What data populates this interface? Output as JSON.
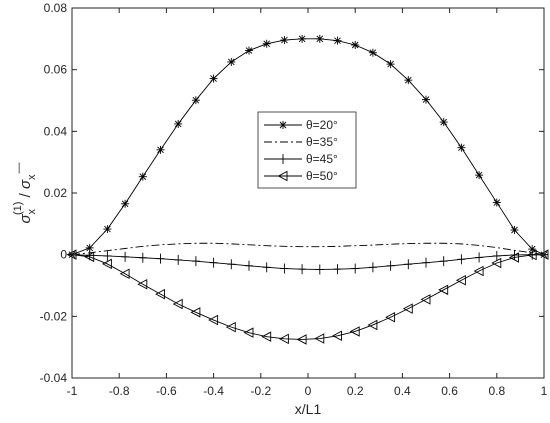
{
  "chart_data": {
    "type": "line",
    "xlabel": "x/L1",
    "ylabel": {
      "sigma": "σ",
      "sub": "x",
      "sup": "(1)",
      "slash": " / ",
      "sigma2": "σ",
      "sub2": "x",
      "over": "—"
    },
    "xlim": [
      -1,
      1
    ],
    "ylim": [
      -0.04,
      0.08
    ],
    "x_ticks": [
      -1,
      -0.8,
      -0.6,
      -0.4,
      -0.2,
      0,
      0.2,
      0.4,
      0.6,
      0.8,
      1
    ],
    "x_tick_labels": [
      "-1",
      "-0.8",
      "-0.6",
      "-0.4",
      "-0.2",
      "0",
      "0.2",
      "0.4",
      "0.6",
      "0.8",
      "1"
    ],
    "y_ticks": [
      -0.04,
      -0.02,
      0,
      0.02,
      0.04,
      0.06,
      0.08
    ],
    "y_tick_labels": [
      "-0.04",
      "-0.02",
      "0",
      "0.02",
      "0.04",
      "0.06",
      "0.08"
    ],
    "grid": false,
    "legend_position": "center",
    "x": [
      -1,
      -0.925,
      -0.85,
      -0.775,
      -0.7,
      -0.625,
      -0.55,
      -0.475,
      -0.4,
      -0.325,
      -0.25,
      -0.175,
      -0.1,
      -0.025,
      0.05,
      0.125,
      0.2,
      0.275,
      0.35,
      0.425,
      0.5,
      0.575,
      0.65,
      0.725,
      0.8,
      0.875,
      0.95,
      1
    ],
    "series": [
      {
        "name": "θ=20°",
        "marker": "asterisk",
        "line": "solid",
        "color": "#000000",
        "values": [
          0,
          0.0022,
          0.0083,
          0.0165,
          0.0253,
          0.034,
          0.0424,
          0.0501,
          0.0571,
          0.0625,
          0.0662,
          0.0684,
          0.0696,
          0.07,
          0.07,
          0.0694,
          0.068,
          0.0655,
          0.0618,
          0.0566,
          0.0503,
          0.043,
          0.0347,
          0.0258,
          0.0169,
          0.008,
          0.0018,
          0
        ]
      },
      {
        "name": "θ=35°",
        "marker": "none",
        "line": "dashdot",
        "color": "#000000",
        "values": [
          0,
          0.0006,
          0.0013,
          0.002,
          0.0027,
          0.0032,
          0.0035,
          0.0037,
          0.0037,
          0.0035,
          0.0032,
          0.0029,
          0.0027,
          0.0026,
          0.0026,
          0.0027,
          0.0029,
          0.0031,
          0.0034,
          0.0036,
          0.0037,
          0.0037,
          0.0035,
          0.003,
          0.0023,
          0.0014,
          0.0006,
          0
        ]
      },
      {
        "name": "θ=45°",
        "marker": "plus",
        "line": "solid",
        "color": "#000000",
        "values": [
          0,
          -0.0002,
          -0.0004,
          -0.0007,
          -0.001,
          -0.0013,
          -0.0017,
          -0.0021,
          -0.0026,
          -0.0031,
          -0.0036,
          -0.0041,
          -0.0045,
          -0.0047,
          -0.0048,
          -0.0047,
          -0.0045,
          -0.0041,
          -0.0036,
          -0.0031,
          -0.0026,
          -0.0021,
          -0.0015,
          -0.0009,
          -0.0004,
          -0.0001,
          0,
          0
        ]
      },
      {
        "name": "θ=50°",
        "marker": "triangle-left",
        "line": "solid",
        "color": "#000000",
        "values": [
          0,
          -0.0007,
          -0.003,
          -0.0062,
          -0.0096,
          -0.0128,
          -0.016,
          -0.0187,
          -0.0212,
          -0.0235,
          -0.0253,
          -0.0266,
          -0.0273,
          -0.0275,
          -0.0272,
          -0.0263,
          -0.0249,
          -0.0228,
          -0.0203,
          -0.0175,
          -0.0145,
          -0.0114,
          -0.0083,
          -0.0053,
          -0.0027,
          -0.0009,
          -0.0001,
          0
        ]
      }
    ]
  }
}
